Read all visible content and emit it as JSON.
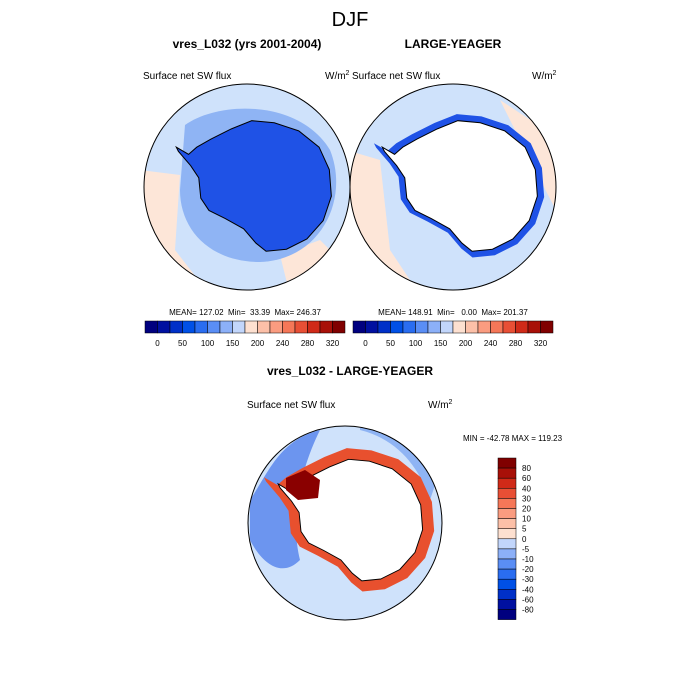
{
  "title": "DJF",
  "panels": [
    {
      "title": "vres_L032 (yrs 2001-2004)",
      "variable": "Surface net SW flux",
      "units": "W/m",
      "units_sup": "2",
      "stats": "MEAN= 127.02  Min=  33.39  Max= 246.37"
    },
    {
      "title": "LARGE-YEAGER",
      "variable": "Surface net SW flux",
      "units": "W/m",
      "units_sup": "2",
      "stats": "MEAN= 148.91  Min=   0.00  Max= 201.37"
    }
  ],
  "colorbar_labels": [
    "0",
    "50",
    "100",
    "150",
    "200",
    "240",
    "280",
    "320"
  ],
  "difference": {
    "title": "vres_L032 - LARGE-YEAGER",
    "variable": "Surface net SW flux",
    "units": "W/m",
    "units_sup": "2",
    "stats": "MIN = -42.78 MAX = 119.23",
    "colorbar_labels": [
      "80",
      "60",
      "40",
      "30",
      "20",
      "10",
      "5",
      "0",
      "-5",
      "-10",
      "-20",
      "-30",
      "-40",
      "-60",
      "-80"
    ]
  }
}
